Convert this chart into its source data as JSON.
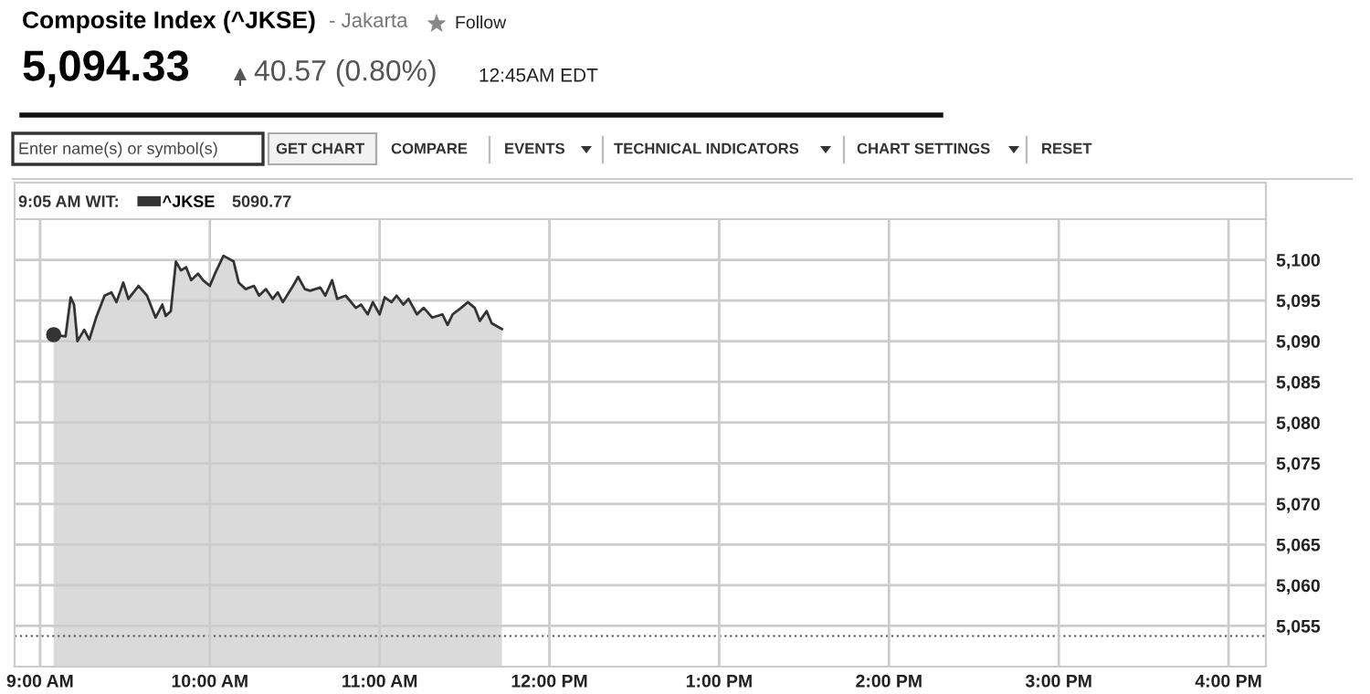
{
  "chart_data": {
    "type": "area",
    "title": "Composite Index (^JKSE)",
    "subtitle": "- Jakarta",
    "annotations": [
      "Follow",
      "5,094.33",
      "40.57 (0.80%)",
      "12:45AM EDT",
      "Enter name(s) or symbol(s)",
      "GET CHART",
      "COMPARE",
      "EVENTS",
      "TECHNICAL INDICATORS",
      "CHART SETTINGS",
      "RESET",
      "9:05 AM WIT:",
      "5090.77"
    ],
    "x": [
      9.08,
      9.15,
      9.18,
      9.2,
      9.22,
      9.26,
      9.29,
      9.33,
      9.38,
      9.42,
      9.45,
      9.49,
      9.52,
      9.58,
      9.63,
      9.68,
      9.72,
      9.74,
      9.77,
      9.8,
      9.83,
      9.86,
      9.89,
      9.93,
      9.96,
      10.0,
      10.03,
      10.08,
      10.14,
      10.17,
      10.21,
      10.26,
      10.29,
      10.33,
      10.37,
      10.4,
      10.43,
      10.49,
      10.52,
      10.56,
      10.59,
      10.65,
      10.68,
      10.72,
      10.75,
      10.8,
      10.86,
      10.89,
      10.93,
      10.96,
      11.0,
      11.03,
      11.07,
      11.1,
      11.14,
      11.17,
      11.22,
      11.26,
      11.31,
      11.37,
      11.4,
      11.43,
      11.48,
      11.52,
      11.56,
      11.59,
      11.63,
      11.66,
      11.72
    ],
    "series": [
      {
        "name": "^JKSE",
        "color": "#333333",
        "values": [
          5090.8,
          5090.6,
          5095.4,
          5094.5,
          5090.0,
          5091.4,
          5090.2,
          5092.9,
          5095.6,
          5096.0,
          5094.8,
          5097.2,
          5095.2,
          5096.8,
          5095.6,
          5092.9,
          5094.5,
          5093.1,
          5093.7,
          5099.8,
          5098.7,
          5099.1,
          5097.5,
          5098.3,
          5097.5,
          5096.8,
          5098.3,
          5100.5,
          5099.8,
          5097.2,
          5096.4,
          5096.8,
          5095.6,
          5096.4,
          5095.2,
          5096.0,
          5094.8,
          5096.8,
          5097.9,
          5096.4,
          5096.2,
          5096.6,
          5095.6,
          5097.5,
          5095.2,
          5095.6,
          5094.1,
          5094.5,
          5093.3,
          5094.8,
          5093.3,
          5095.4,
          5094.8,
          5095.6,
          5094.5,
          5095.2,
          5093.3,
          5094.1,
          5092.9,
          5093.3,
          5092.0,
          5093.3,
          5094.1,
          5094.8,
          5094.1,
          5092.5,
          5093.7,
          5092.2,
          5091.5
        ]
      }
    ],
    "xlim": [
      8.85,
      16.22
    ],
    "xticks": [
      {
        "value": 9,
        "label": "9:00 AM"
      },
      {
        "value": 10,
        "label": "10:00 AM"
      },
      {
        "value": 11,
        "label": "11:00 AM"
      },
      {
        "value": 12,
        "label": "12:00 PM"
      },
      {
        "value": 13,
        "label": "1:00 PM"
      },
      {
        "value": 14,
        "label": "2:00 PM"
      },
      {
        "value": 15,
        "label": "3:00 PM"
      },
      {
        "value": 16,
        "label": "4:00 PM"
      }
    ],
    "ylim": [
      5050,
      5105
    ],
    "yticks": [
      {
        "value": 5055,
        "label": "5,055"
      },
      {
        "value": 5060,
        "label": "5,060"
      },
      {
        "value": 5065,
        "label": "5,065"
      },
      {
        "value": 5070,
        "label": "5,070"
      },
      {
        "value": 5075,
        "label": "5,075"
      },
      {
        "value": 5080,
        "label": "5,080"
      },
      {
        "value": 5085,
        "label": "5,085"
      },
      {
        "value": 5090,
        "label": "5,090"
      },
      {
        "value": 5095,
        "label": "5,095"
      },
      {
        "value": 5100,
        "label": "5,100"
      }
    ],
    "ref_lines": [
      {
        "axis": "y",
        "value": 5053.76,
        "label": null,
        "color": "#555555",
        "line_style": "dotted"
      }
    ],
    "grid": true,
    "legend": "top left",
    "marker": "none",
    "line_style": "solid"
  }
}
